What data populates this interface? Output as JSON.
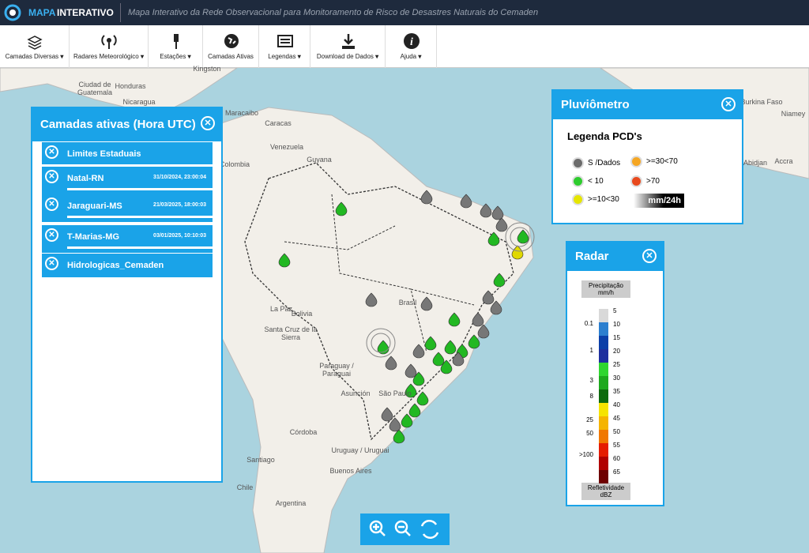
{
  "header": {
    "brand_a": "MAPA",
    "brand_b": "INTERATIVO",
    "subtitle": "Mapa Interativo da Rede Observacional para Monitoramento de Risco de Desastres Naturais do Cemaden"
  },
  "toolbar": [
    "Camadas Diversas",
    "Radares Meteorológico",
    "Estações",
    "Camadas Ativas",
    "Legendas",
    "Download de Dados",
    "Ajuda"
  ],
  "layers_panel": {
    "title": "Camadas ativas (Hora UTC)",
    "layers": [
      {
        "name": "Limites Estaduais"
      },
      {
        "name": "Natal-RN",
        "time": "31/10/2024, 23:00:04"
      },
      {
        "name": "Jaraguari-MS",
        "time": "21/03/2025, 18:00:03"
      },
      {
        "name": "T-Marias-MG",
        "time": "03/01/2025, 10:10:03"
      },
      {
        "name": "Hidrologicas_Cemaden"
      }
    ]
  },
  "rain_panel": {
    "title": "Pluviômetro",
    "subtitle": "Legenda PCD's",
    "items": [
      {
        "label": "S /Dados",
        "color": "#6b6b6b"
      },
      {
        "label": ">=30<70",
        "color": "#f5a623"
      },
      {
        "label": "< 10",
        "color": "#2ecc2e"
      },
      {
        "label": ">70",
        "color": "#e8491d"
      },
      {
        "label": ">=10<30",
        "color": "#e6e600"
      }
    ],
    "unit": "mm/24h"
  },
  "radar_panel": {
    "title": "Radar",
    "top_label": "Precipitação mm/h",
    "bottom_label": "Refletividade dBZ",
    "rain_labels": [
      "0.1",
      "1",
      "3",
      "8",
      "25",
      "50",
      ">100"
    ],
    "dbz_labels": [
      "5",
      "10",
      "15",
      "20",
      "25",
      "30",
      "35",
      "40",
      "45",
      "50",
      "55",
      "60",
      "65"
    ],
    "colors": [
      "#d9d9d9",
      "#2c7fcf",
      "#0b3fa8",
      "#1e2f9e",
      "#2fd62f",
      "#1da91d",
      "#0d6b0d",
      "#f5e400",
      "#f5b400",
      "#f07800",
      "#e51c00",
      "#b00000",
      "#6e0000"
    ]
  },
  "map_labels": [
    "Ciudad de Guatemala",
    "Honduras",
    "Nicaragua",
    "Kingston",
    "Maracaibo",
    "Caracas",
    "Venezuela",
    "Guyana",
    "Colombia",
    "Bolivia",
    "La Paz",
    "Santa Cruz de la Sierra",
    "Brasil",
    "Paraguay / Paraguai",
    "Asunción",
    "São Paulo",
    "Córdoba",
    "Uruguay / Uruguai",
    "Santiago",
    "Buenos Aires",
    "Chile",
    "Argentina",
    "Burkina Faso",
    "Niamey",
    "Abidjan",
    "Accra"
  ]
}
